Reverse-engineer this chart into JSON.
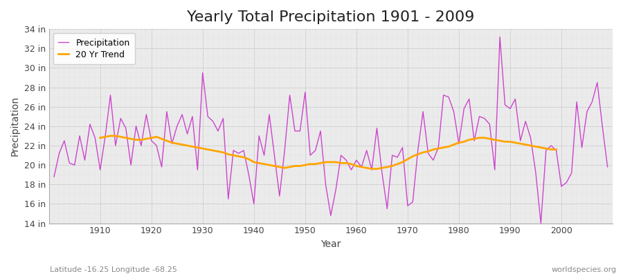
{
  "title": "Yearly Total Precipitation 1901 - 2009",
  "xlabel": "Year",
  "ylabel": "Precipitation",
  "subtitle_lat": "Latitude -16.25 Longitude -68.25",
  "watermark": "worldspecies.org",
  "line_color": "#CC44CC",
  "trend_color": "#FFA500",
  "fig_bg_color": "#FFFFFF",
  "plot_bg_color": "#EBEBEB",
  "grid_color": "#CCCCCC",
  "ylim": [
    14,
    34
  ],
  "ytick_labels": [
    "14 in",
    "16 in",
    "18 in",
    "20 in",
    "22 in",
    "24 in",
    "26 in",
    "28 in",
    "30 in",
    "32 in",
    "34 in"
  ],
  "ytick_values": [
    14,
    16,
    18,
    20,
    22,
    24,
    26,
    28,
    30,
    32,
    34
  ],
  "xticks": [
    1910,
    1920,
    1930,
    1940,
    1950,
    1960,
    1970,
    1980,
    1990,
    2000
  ],
  "years": [
    1901,
    1902,
    1903,
    1904,
    1905,
    1906,
    1907,
    1908,
    1909,
    1910,
    1911,
    1912,
    1913,
    1914,
    1915,
    1916,
    1917,
    1918,
    1919,
    1920,
    1921,
    1922,
    1923,
    1924,
    1925,
    1926,
    1927,
    1928,
    1929,
    1930,
    1931,
    1932,
    1933,
    1934,
    1935,
    1936,
    1937,
    1938,
    1939,
    1940,
    1941,
    1942,
    1943,
    1944,
    1945,
    1946,
    1947,
    1948,
    1949,
    1950,
    1951,
    1952,
    1953,
    1954,
    1955,
    1956,
    1957,
    1958,
    1959,
    1960,
    1961,
    1962,
    1963,
    1964,
    1965,
    1966,
    1967,
    1968,
    1969,
    1970,
    1971,
    1972,
    1973,
    1974,
    1975,
    1976,
    1977,
    1978,
    1979,
    1980,
    1981,
    1982,
    1983,
    1984,
    1985,
    1986,
    1987,
    1988,
    1989,
    1990,
    1991,
    1992,
    1993,
    1994,
    1995,
    1996,
    1997,
    1998,
    1999,
    2000,
    2001,
    2002,
    2003,
    2004,
    2005,
    2006,
    2007,
    2008,
    2009
  ],
  "precip": [
    18.8,
    21.2,
    22.5,
    20.2,
    20.0,
    23.0,
    20.5,
    24.2,
    22.8,
    19.5,
    23.0,
    27.2,
    22.0,
    24.8,
    23.8,
    20.0,
    24.0,
    22.0,
    25.2,
    22.5,
    22.0,
    19.8,
    25.5,
    22.2,
    24.0,
    25.2,
    23.2,
    25.0,
    19.5,
    29.5,
    25.0,
    24.5,
    23.5,
    24.8,
    16.5,
    21.5,
    21.2,
    21.5,
    19.0,
    16.0,
    23.0,
    21.0,
    25.2,
    21.0,
    16.8,
    21.5,
    27.2,
    23.5,
    23.5,
    27.5,
    21.0,
    21.5,
    23.5,
    18.0,
    14.8,
    17.5,
    21.0,
    20.5,
    19.5,
    20.5,
    19.8,
    21.5,
    19.5,
    23.8,
    19.2,
    15.5,
    21.0,
    20.8,
    21.8,
    15.8,
    16.2,
    21.5,
    25.5,
    21.2,
    20.5,
    21.8,
    27.2,
    27.0,
    25.5,
    22.2,
    25.8,
    26.8,
    22.5,
    25.0,
    24.8,
    24.2,
    19.5,
    33.2,
    26.2,
    25.8,
    26.8,
    22.5,
    24.5,
    22.8,
    19.2,
    14.0,
    21.5,
    22.0,
    21.5,
    17.8,
    18.2,
    19.2,
    26.5,
    21.8,
    25.5,
    26.5,
    28.5,
    24.0,
    19.8
  ],
  "trend": [
    null,
    null,
    null,
    null,
    null,
    null,
    null,
    null,
    null,
    22.8,
    22.9,
    23.0,
    23.0,
    22.9,
    22.8,
    22.7,
    22.6,
    22.6,
    22.7,
    22.8,
    22.9,
    22.7,
    22.5,
    22.3,
    22.2,
    22.1,
    22.0,
    21.9,
    21.8,
    21.7,
    21.6,
    21.5,
    21.4,
    21.3,
    21.1,
    21.0,
    20.9,
    20.8,
    20.6,
    20.3,
    20.2,
    20.1,
    20.0,
    19.9,
    19.8,
    19.7,
    19.8,
    19.9,
    19.9,
    20.0,
    20.1,
    20.1,
    20.2,
    20.3,
    20.3,
    20.3,
    20.2,
    20.2,
    20.1,
    19.9,
    19.8,
    19.7,
    19.6,
    19.6,
    19.7,
    19.8,
    19.9,
    20.1,
    20.3,
    20.6,
    20.9,
    21.1,
    21.3,
    21.4,
    21.6,
    21.7,
    21.8,
    21.9,
    22.1,
    22.3,
    22.4,
    22.6,
    22.7,
    22.8,
    22.8,
    22.7,
    22.6,
    22.5,
    22.4,
    22.4,
    22.3,
    22.2,
    22.1,
    22.0,
    21.9,
    21.8,
    21.7,
    21.6,
    21.6
  ],
  "legend_precip": "Precipitation",
  "legend_trend": "20 Yr Trend",
  "title_fontsize": 16,
  "axis_label_fontsize": 10,
  "tick_fontsize": 9,
  "legend_fontsize": 9
}
